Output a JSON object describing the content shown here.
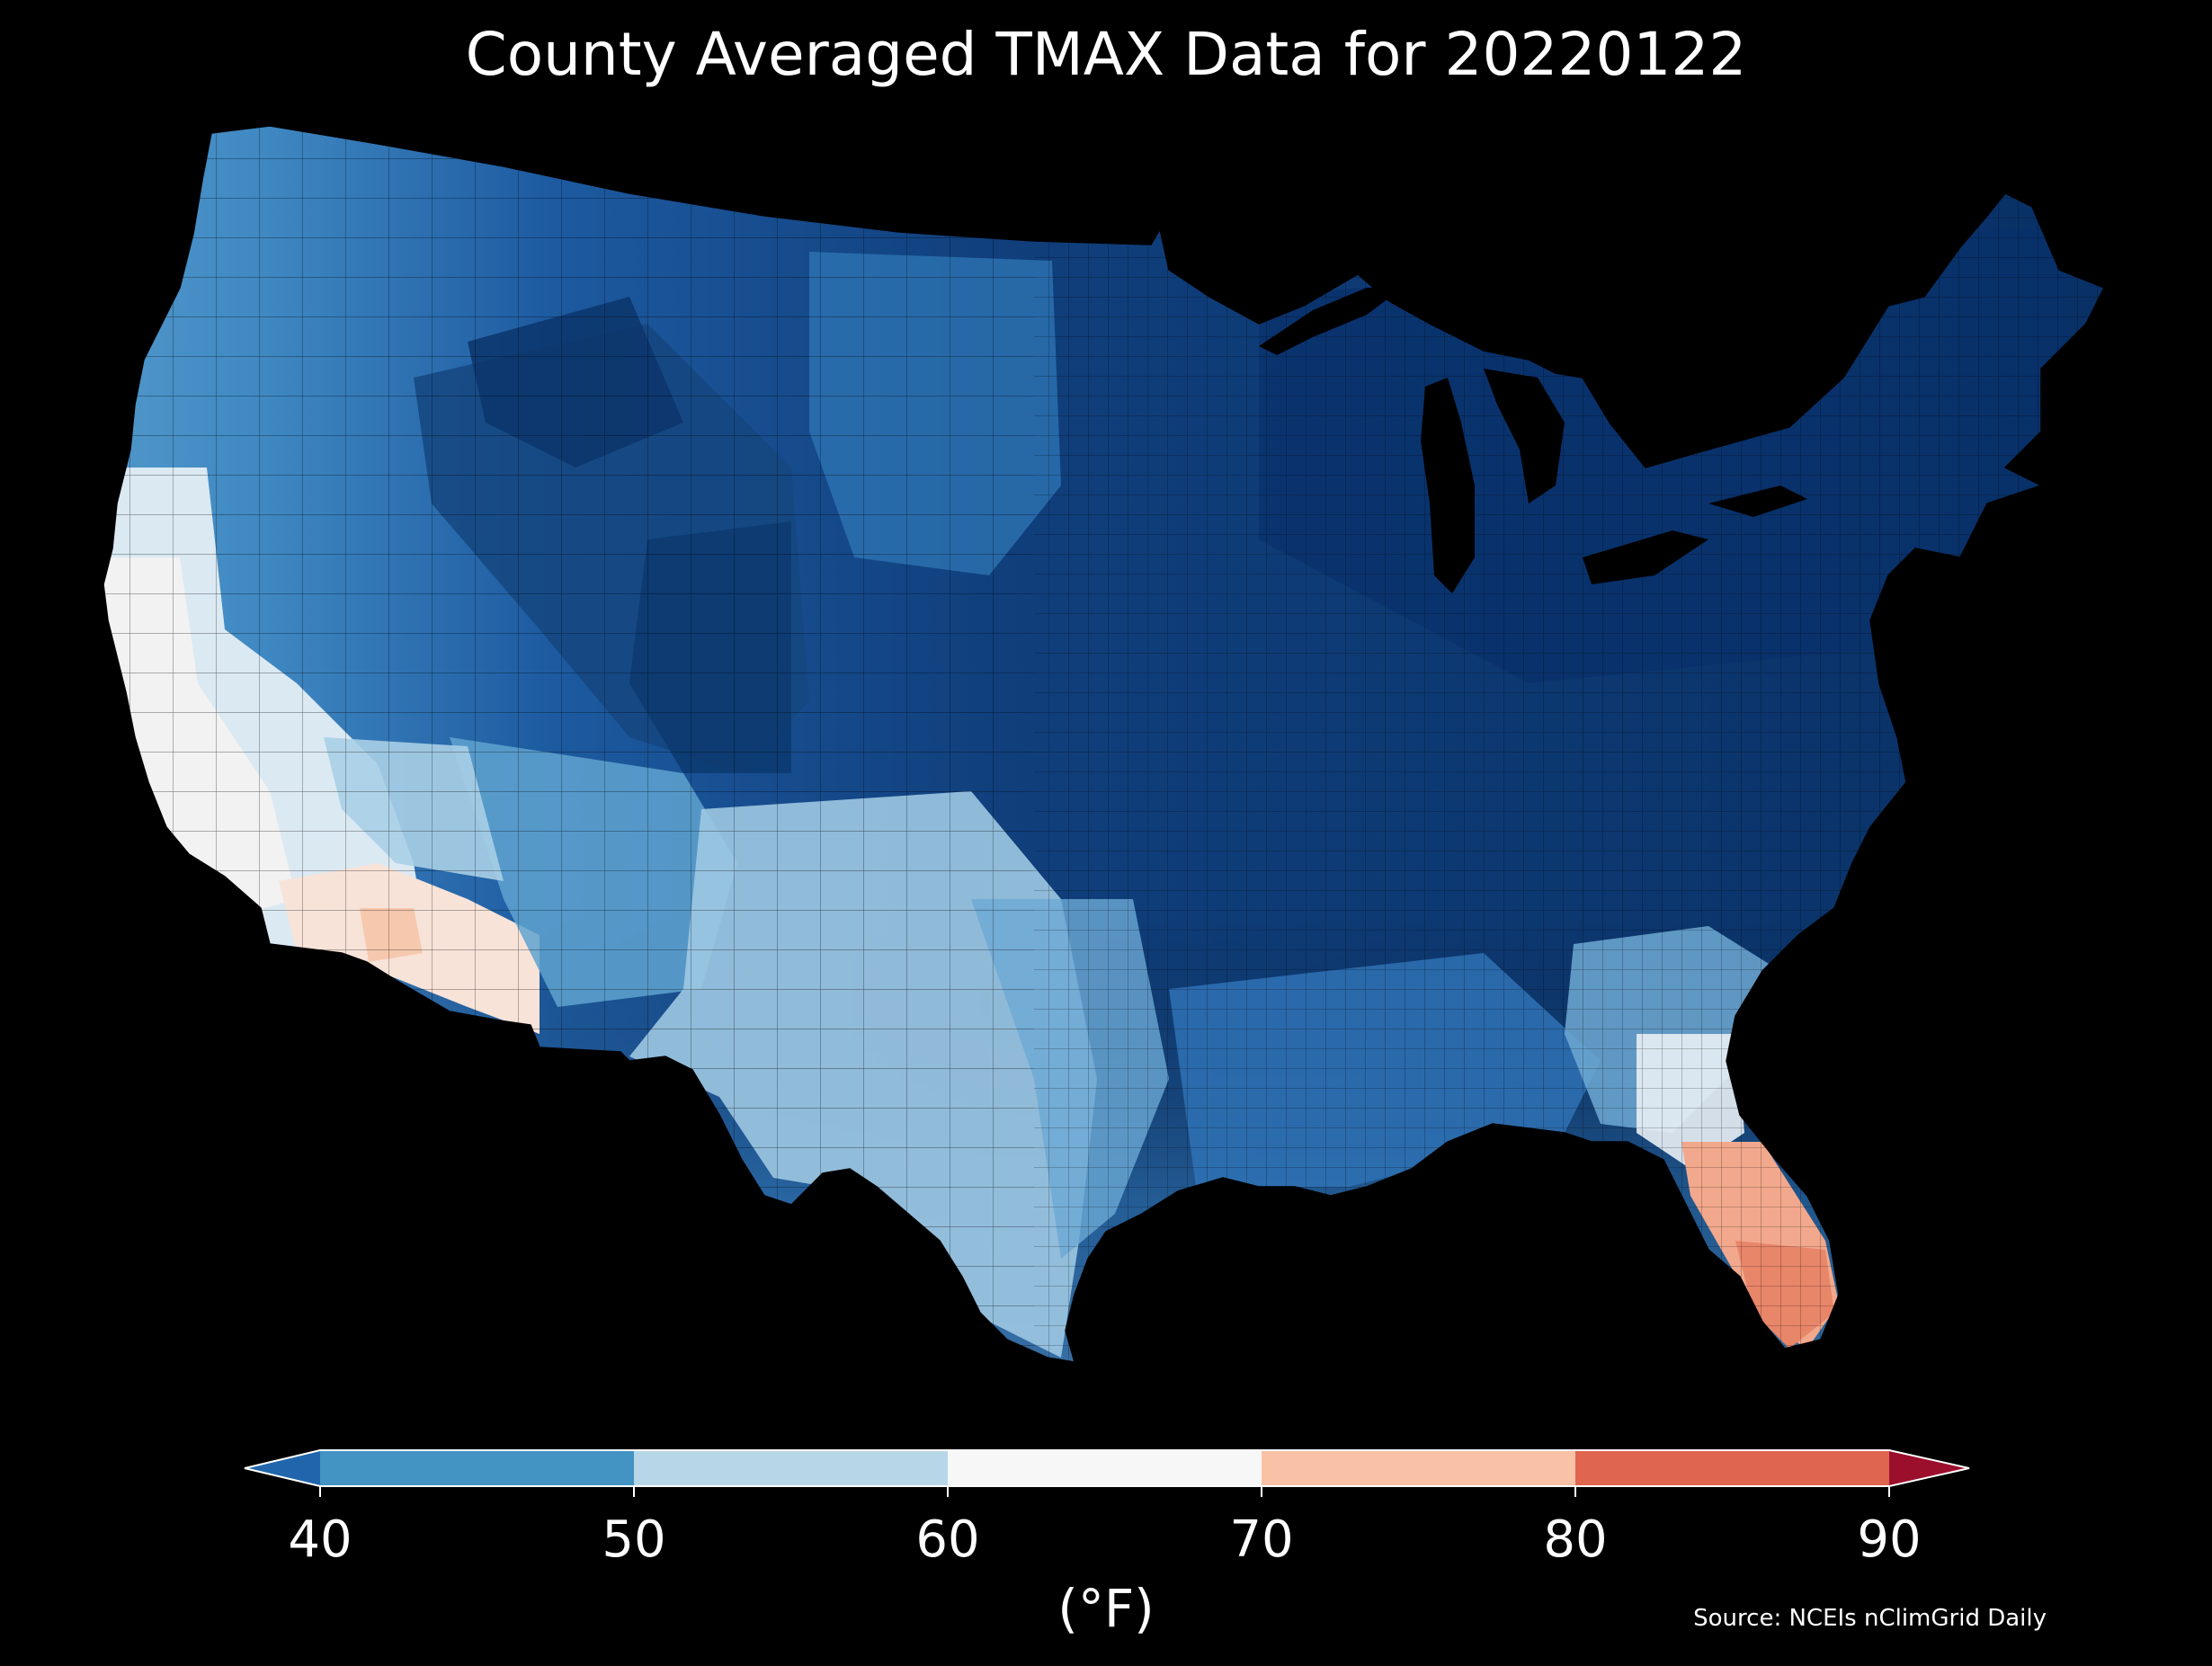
{
  "title": "County Averaged TMAX Data for 20220122",
  "units_label": "(°F)",
  "source": "Source: NCEIs nClimGrid Daily",
  "colorbar": {
    "ticks": [
      "40",
      "50",
      "60",
      "70",
      "80",
      "90"
    ],
    "bins": [
      {
        "range": "<40",
        "color": "#2166ac"
      },
      {
        "range": "40-50",
        "color": "#4393c3"
      },
      {
        "range": "50-60",
        "color": "#b7d7e8"
      },
      {
        "range": "60-70",
        "color": "#f7f7f7"
      },
      {
        "range": "70-80",
        "color": "#f9c2a6"
      },
      {
        "range": "80-90",
        "color": "#e0654f"
      },
      {
        "range": ">90",
        "color": "#9c0f2c"
      }
    ]
  },
  "colors": {
    "background": "#000000",
    "text": "#ffffff",
    "county_border": "#000000",
    "extreme_cold": "#08306b",
    "very_cold": "#0f3f7a",
    "cold": "#1f5fa8",
    "cool": "#3d86c0",
    "mild": "#8cc0de",
    "light": "#d6e7f2",
    "neutral": "#f4f4f4",
    "warm": "#f7c9ae",
    "hot": "#e8866a"
  },
  "map": {
    "region": "Contiguous United States",
    "variable": "TMAX",
    "date": "20220122"
  }
}
